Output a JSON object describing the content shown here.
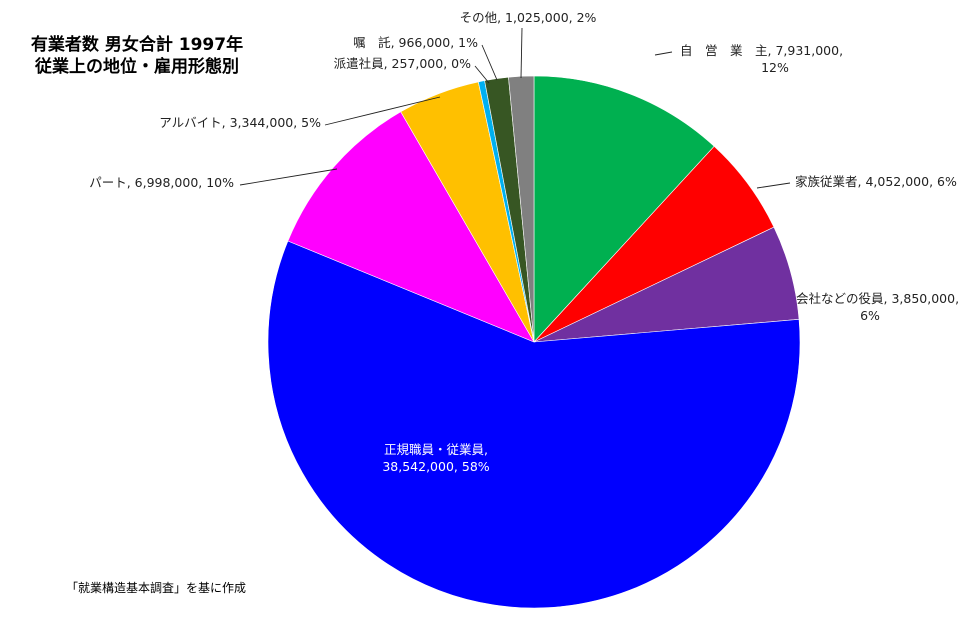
{
  "header": {
    "title_line1": "有業者数 男女合計 1997年",
    "title_line2": "従業上の地位・雇用形態別"
  },
  "footer": {
    "source": "「就業構造基本調査」を基に作成"
  },
  "chart_data": {
    "type": "pie",
    "title": "有業者数 男女合計 1997年 従業上の地位・雇用形態別",
    "start_angle_deg": 0,
    "direction": "clockwise",
    "slices": [
      {
        "name": "自　営　業　主",
        "value": 7931000,
        "value_text": "7,931,000",
        "percent": "12%",
        "color": "#00b050"
      },
      {
        "name": "家族従業者",
        "value": 4052000,
        "value_text": "4,052,000",
        "percent": "6%",
        "color": "#ff0000"
      },
      {
        "name": "会社などの役員",
        "value": 3850000,
        "value_text": "3,850,000",
        "percent": "6%",
        "color": "#7030a0"
      },
      {
        "name": "正規職員・従業員",
        "value": 38542000,
        "value_text": "38,542,000",
        "percent": "58%",
        "color": "#0000ff"
      },
      {
        "name": "パート",
        "value": 6998000,
        "value_text": "6,998,000",
        "percent": "10%",
        "color": "#ff00ff"
      },
      {
        "name": "アルバイト",
        "value": 3344000,
        "value_text": "3,344,000",
        "percent": "5%",
        "color": "#ffc000"
      },
      {
        "name": "派遣社員",
        "value": 257000,
        "value_text": "257,000",
        "percent": "0%",
        "color": "#00b0f0"
      },
      {
        "name": "嘱　託",
        "value": 966000,
        "value_text": "966,000",
        "percent": "1%",
        "color": "#375623"
      },
      {
        "name": "その他",
        "value": 1025000,
        "value_text": "1,025,000",
        "percent": "2%",
        "color": "#808080"
      }
    ],
    "labels": [
      {
        "lines": [
          "自　営　業　主, 7,931,000,",
          "12%"
        ]
      },
      {
        "lines": [
          "家族従業者, 4,052,000, 6%"
        ]
      },
      {
        "lines": [
          "会社などの役員, 3,850,000,",
          "6%"
        ]
      },
      {
        "lines": [
          "正規職員・従業員,",
          "38,542,000, 58%"
        ]
      },
      {
        "lines": [
          "パート, 6,998,000, 10%"
        ]
      },
      {
        "lines": [
          "アルバイト, 3,344,000, 5%"
        ]
      },
      {
        "lines": [
          "派遣社員, 257,000, 0%"
        ]
      },
      {
        "lines": [
          "嘱　託, 966,000, 1%"
        ]
      },
      {
        "lines": [
          "その他, 1,025,000, 2%"
        ]
      }
    ]
  }
}
